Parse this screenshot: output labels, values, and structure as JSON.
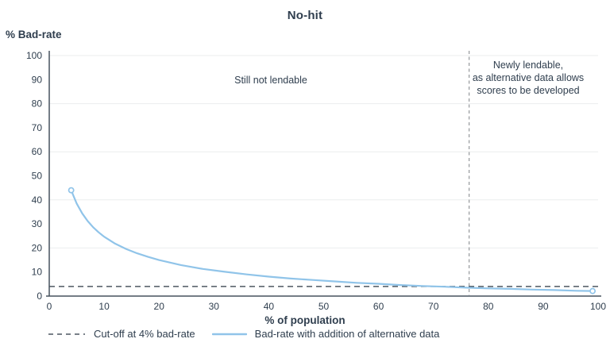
{
  "title": "No-hit",
  "y_axis_title": "% Bad-rate",
  "x_axis_title": "% of population",
  "annotations": {
    "left": "Still not lendable",
    "right": "Newly lendable,\nas alternative data allows\nscores to be developed"
  },
  "legend": [
    {
      "label": "Cut-off at 4% bad-rate",
      "sample": "dashed-line"
    },
    {
      "label": "Bad-rate with addition of alternative data",
      "sample": "solid-line"
    }
  ],
  "colors": {
    "ink": "#2f3e4e",
    "axis": "#47525e",
    "grid": "#ebedee",
    "curve": "#90c4e9",
    "cutoff": "#4d5761",
    "vline": "#9b9ea1"
  },
  "chart_data": {
    "type": "line",
    "title": "No-hit",
    "xlabel": "% of population",
    "ylabel": "% Bad-rate",
    "xlim": [
      0,
      100
    ],
    "ylim": [
      0,
      100
    ],
    "x_ticks": [
      0,
      10,
      20,
      30,
      40,
      50,
      60,
      70,
      80,
      90,
      100
    ],
    "y_ticks": [
      0,
      10,
      20,
      30,
      40,
      50,
      60,
      70,
      80,
      90,
      100
    ],
    "grid_y": [
      20,
      40,
      60,
      80,
      100
    ],
    "legend_position": "bottom-left",
    "cutoff_line": {
      "label": "Cut-off at 4% bad-rate",
      "y": 4,
      "style": "dashed"
    },
    "divider_line": {
      "x": 76.5,
      "style": "dashed-vertical",
      "left_region_label": "Still not lendable",
      "right_region_label": "Newly lendable, as alternative data allows scores to be developed"
    },
    "series": [
      {
        "name": "Bad-rate with addition of alternative data",
        "endpoint_markers": "open-circle",
        "points": [
          [
            4,
            44
          ],
          [
            5,
            38.5
          ],
          [
            6,
            34.4
          ],
          [
            7,
            31.2
          ],
          [
            8,
            28.6
          ],
          [
            9,
            26.5
          ],
          [
            10,
            24.7
          ],
          [
            12,
            21.8
          ],
          [
            14,
            19.6
          ],
          [
            16,
            17.8
          ],
          [
            18,
            16.3
          ],
          [
            20,
            15
          ],
          [
            24,
            12.9
          ],
          [
            28,
            11.3
          ],
          [
            32,
            10.1
          ],
          [
            36,
            9
          ],
          [
            40,
            8.1
          ],
          [
            44,
            7.3
          ],
          [
            48,
            6.7
          ],
          [
            52,
            6.1
          ],
          [
            56,
            5.5
          ],
          [
            60,
            5.1
          ],
          [
            64,
            4.6
          ],
          [
            68,
            4.2
          ],
          [
            72,
            3.9
          ],
          [
            76,
            3.5
          ],
          [
            80,
            3.2
          ],
          [
            84,
            3
          ],
          [
            88,
            2.7
          ],
          [
            92,
            2.5
          ],
          [
            96,
            2.2
          ],
          [
            99,
            2.1
          ]
        ]
      }
    ]
  }
}
